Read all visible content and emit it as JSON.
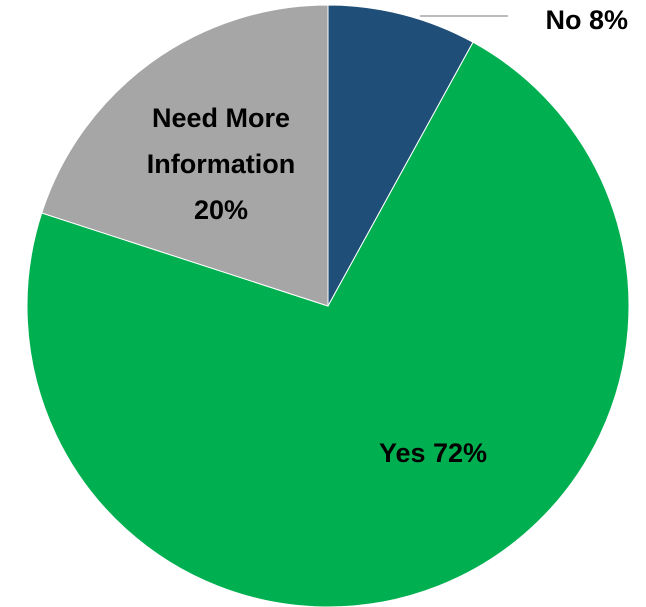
{
  "chart_data": {
    "type": "pie",
    "slices": [
      {
        "label": "No",
        "value": 8,
        "color": "#1f4e79"
      },
      {
        "label": "Yes",
        "value": 72,
        "color": "#00b050"
      },
      {
        "label": "Need More Information",
        "value": 20,
        "color": "#a6a6a6"
      }
    ],
    "data_labels": [
      {
        "text_lines": [
          "No 8%"
        ],
        "leader_line": true
      },
      {
        "text_lines": [
          "Yes 72%"
        ],
        "leader_line": false
      },
      {
        "text_lines": [
          "Need More",
          "Information",
          "20%"
        ],
        "leader_line": false
      }
    ],
    "start_angle_deg": 0,
    "direction": "clockwise",
    "legend": "none"
  }
}
